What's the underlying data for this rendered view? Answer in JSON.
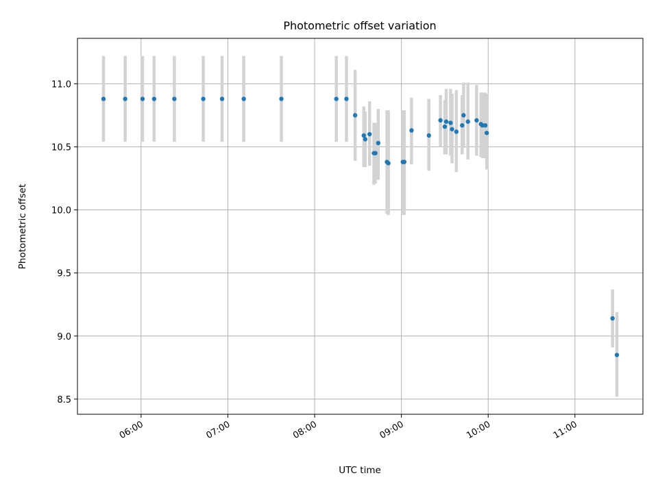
{
  "chart_data": {
    "type": "scatter",
    "title": "Photometric offset variation",
    "xlabel": "UTC time",
    "ylabel": "Photometric offset",
    "xlim": [
      "05:16",
      "11:47"
    ],
    "ylim": [
      8.38,
      11.36
    ],
    "xticks": [
      "06:00",
      "07:00",
      "08:00",
      "09:00",
      "10:00",
      "11:00"
    ],
    "yticks": [
      "8.5",
      "9.0",
      "9.5",
      "10.0",
      "10.5",
      "11.0"
    ],
    "grid": true,
    "colors": {
      "marker": "#1f77b4",
      "errorbar": "#d3d3d3"
    },
    "points": [
      {
        "t": "05:34",
        "y": 10.88,
        "lo": 10.54,
        "hi": 11.22
      },
      {
        "t": "05:49",
        "y": 10.88,
        "lo": 10.54,
        "hi": 11.22
      },
      {
        "t": "06:01",
        "y": 10.88,
        "lo": 10.54,
        "hi": 11.22
      },
      {
        "t": "06:09",
        "y": 10.88,
        "lo": 10.54,
        "hi": 11.22
      },
      {
        "t": "06:23",
        "y": 10.88,
        "lo": 10.54,
        "hi": 11.22
      },
      {
        "t": "06:43",
        "y": 10.88,
        "lo": 10.54,
        "hi": 11.22
      },
      {
        "t": "06:56",
        "y": 10.88,
        "lo": 10.54,
        "hi": 11.22
      },
      {
        "t": "07:11",
        "y": 10.88,
        "lo": 10.54,
        "hi": 11.22
      },
      {
        "t": "07:37",
        "y": 10.88,
        "lo": 10.54,
        "hi": 11.22
      },
      {
        "t": "08:15",
        "y": 10.88,
        "lo": 10.54,
        "hi": 11.22
      },
      {
        "t": "08:22",
        "y": 10.88,
        "lo": 10.54,
        "hi": 11.22
      },
      {
        "t": "08:28",
        "y": 10.75,
        "lo": 10.39,
        "hi": 11.11
      },
      {
        "t": "08:34",
        "y": 10.59,
        "lo": 10.34,
        "hi": 10.82
      },
      {
        "t": "08:35",
        "y": 10.56,
        "lo": 10.34,
        "hi": 10.78
      },
      {
        "t": "08:38",
        "y": 10.6,
        "lo": 10.35,
        "hi": 10.86
      },
      {
        "t": "08:41",
        "y": 10.45,
        "lo": 10.2,
        "hi": 10.69
      },
      {
        "t": "08:42",
        "y": 10.45,
        "lo": 10.21,
        "hi": 10.69
      },
      {
        "t": "08:44",
        "y": 10.53,
        "lo": 10.24,
        "hi": 10.8
      },
      {
        "t": "08:50",
        "y": 10.38,
        "lo": 9.97,
        "hi": 10.79
      },
      {
        "t": "08:51",
        "y": 10.37,
        "lo": 9.96,
        "hi": 10.79
      },
      {
        "t": "09:01",
        "y": 10.38,
        "lo": 9.96,
        "hi": 10.79
      },
      {
        "t": "09:02",
        "y": 10.38,
        "lo": 9.96,
        "hi": 10.79
      },
      {
        "t": "09:07",
        "y": 10.63,
        "lo": 10.36,
        "hi": 10.89
      },
      {
        "t": "09:19",
        "y": 10.59,
        "lo": 10.31,
        "hi": 10.88
      },
      {
        "t": "09:27",
        "y": 10.71,
        "lo": 10.5,
        "hi": 10.91
      },
      {
        "t": "09:30",
        "y": 10.66,
        "lo": 10.44,
        "hi": 10.87
      },
      {
        "t": "09:31",
        "y": 10.7,
        "lo": 10.44,
        "hi": 10.96
      },
      {
        "t": "09:34",
        "y": 10.69,
        "lo": 10.43,
        "hi": 10.96
      },
      {
        "t": "09:35",
        "y": 10.64,
        "lo": 10.37,
        "hi": 10.92
      },
      {
        "t": "09:38",
        "y": 10.62,
        "lo": 10.3,
        "hi": 10.95
      },
      {
        "t": "09:42",
        "y": 10.67,
        "lo": 10.44,
        "hi": 10.91
      },
      {
        "t": "09:43",
        "y": 10.75,
        "lo": 10.49,
        "hi": 11.01
      },
      {
        "t": "09:46",
        "y": 10.7,
        "lo": 10.4,
        "hi": 11.01
      },
      {
        "t": "09:52",
        "y": 10.71,
        "lo": 10.43,
        "hi": 10.99
      },
      {
        "t": "09:55",
        "y": 10.68,
        "lo": 10.42,
        "hi": 10.93
      },
      {
        "t": "09:56",
        "y": 10.67,
        "lo": 10.41,
        "hi": 10.93
      },
      {
        "t": "09:58",
        "y": 10.67,
        "lo": 10.41,
        "hi": 10.93
      },
      {
        "t": "09:59",
        "y": 10.61,
        "lo": 10.32,
        "hi": 10.92
      },
      {
        "t": "11:26",
        "y": 9.14,
        "lo": 8.91,
        "hi": 9.37
      },
      {
        "t": "11:29",
        "y": 8.85,
        "lo": 8.52,
        "hi": 9.19
      }
    ]
  }
}
